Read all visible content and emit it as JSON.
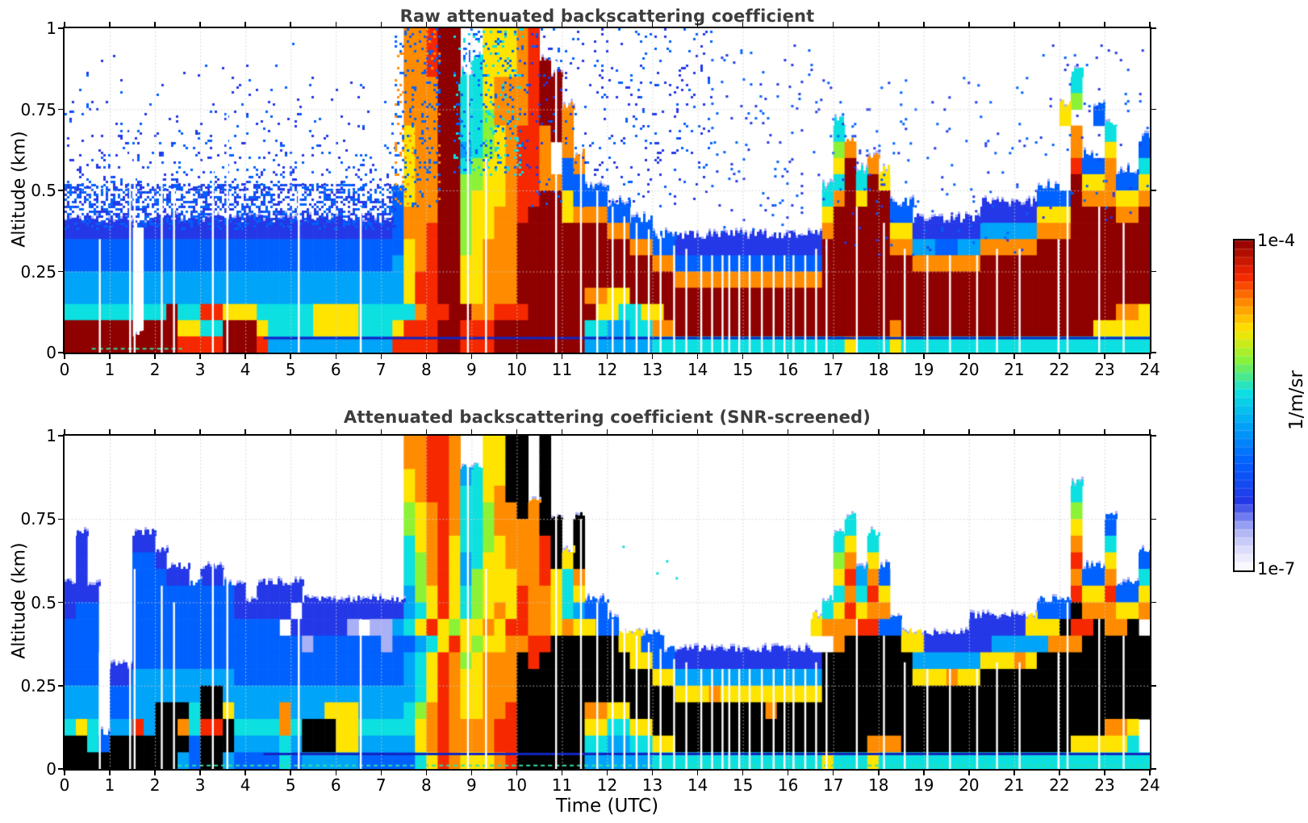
{
  "figure": {
    "background": "#ffffff",
    "title_color": "#3d3d3d",
    "titles": {
      "top": "Raw attenuated backscattering coefficient",
      "bottom": "Attenuated backscattering coefficient (SNR-screened)"
    },
    "xlabel": "Time (UTC)",
    "ylabel": "Altitude (km)",
    "x_ticks": [
      "0",
      "1",
      "2",
      "3",
      "4",
      "5",
      "6",
      "7",
      "8",
      "9",
      "10",
      "11",
      "12",
      "13",
      "14",
      "15",
      "16",
      "17",
      "18",
      "19",
      "20",
      "21",
      "22",
      "23",
      "24"
    ],
    "y_ticks": [
      [
        "1",
        1
      ],
      [
        "0.75",
        0.75
      ],
      [
        "0.5",
        0.5
      ],
      [
        "0.25",
        0.25
      ],
      [
        "0",
        0
      ]
    ],
    "grid_color": "rgba(205,205,205,0.95)",
    "colorbar": {
      "max_label": "1e-4",
      "min_label": "1e-7",
      "units": "1/m/sr",
      "segments": 40,
      "stops": [
        [
          0,
          "#ffffff"
        ],
        [
          0.055,
          "#e2e2fb"
        ],
        [
          0.125,
          "#aab0f5"
        ],
        [
          0.21,
          "#2438e8"
        ],
        [
          0.33,
          "#0061ff"
        ],
        [
          0.44,
          "#00a4f8"
        ],
        [
          0.54,
          "#0ce0e0"
        ],
        [
          0.64,
          "#8cf236"
        ],
        [
          0.73,
          "#ffe400"
        ],
        [
          0.81,
          "#ff8c00"
        ],
        [
          0.89,
          "#f52800"
        ],
        [
          1,
          "#8f0000"
        ]
      ]
    },
    "palette": {
      "1": "#e2e2fb",
      "2": "#aab0f5",
      "3": "#2438e8",
      "4": "#0061ff",
      "5": "#00a4f8",
      "6": "#0ce0e0",
      "7": "#8cf236",
      "8": "#ffe400",
      "9": "#ff8c00",
      "A": "#f52800",
      "B": "#8f0000",
      "K": "#000000"
    }
  },
  "chart_data": [
    {
      "type": "heatmap",
      "title": "Raw attenuated backscattering coefficient",
      "xlabel": "Time (UTC)",
      "x_range_hours_utc": [
        0,
        24
      ],
      "ylabel": "Altitude (km)",
      "y_range_km": [
        0,
        1
      ],
      "value_units": "1/m/sr",
      "value_scale": "log color scale from 1e-7 (white/pale) to 1e-4 (dark red), jet-like colormap",
      "level_log10_values": {
        "1": -6.8,
        "2": -6.55,
        "3": -6.3,
        "4": -6.0,
        "5": -5.7,
        "6": -5.4,
        "7": -5.1,
        "8": -4.8,
        "9": -4.5,
        "A": -4.2,
        "B": -4.0,
        "K": -4.0
      },
      "grid_note": "20 rows top-to-bottom = 1.0 to 0.0 km (0.05 km/row); 96 cols = 0 to 24 h UTC (0.25 h/col); '.' = below range / no echo (white)",
      "grid": [
        "..............................99ABB..8889A......................................................",
        "..............................99ABB..8889A......................................................",
        "..............................99ABB.68889AB.....................................................",
        "..............................999BB668999ABB.............................................6......",
        "..............................999BB668999ABB.............................................7......",
        "..............................999BB667999ABB9...........................................8..4...",
        "..............................899BB66789AA9B9.......................6....................9..6...",
        "..............................899BB56789AA9.9.......................79...................9..8..4",
        "..............................899BB67889AA9.49......................8B.9.................A449..6",
        "..............................899BB77889AA9944......................6B6B8................B889448",
        ".............................4899BB78889AABB8444...................69B8BB.............444B999889",
        ".............................4999BB78899ABBB899944.................8BBBBB44......33333888BBBB99B",
        "333333.3333333333333333333333499ABB78899BBBBBBBB9944...............9BBBBB8833333355555999BBBBBBB",
        "444444.4444444444444444444444489ABB78999BBBBBBBBBB99443333333333333BBBBBB9955445599999BBBBBBBBBB",
        "444444.4444444444444444444444589ABB88999BBBBBBBBBBBB994444444444444BBBBBBBB999999BBBBBBBBBBBBBBB",
        "555555.555555555555555555555558AABB88999BBBBBBBBBBBBBB9999999999999BBBBBBBBBBBBBBBBBBBBBBBBBBBBB",
        "555555.555555555555555555555558AABB88999BBBBBB9988BBBBBBBBBBBBBBBBBBBBBBBBBBBBBBBBBBBBBBBBBBBBBB",
        "666666.66B66AA888666668888666669AABB99AAABBBBBB886688BBBBBBBBBBBBBBBBBBBBBBBBBBBBBBBBBBBBBBBB998",
        "BBBBBB.BBB8866BBB8666688886668AAABBAAABBBBBBBB66556699BBBBBBBBBBBBBBBBBBB9BBBBBBBBBBBBBBBBB888886",
        "BBBBBBBBBBAAAABBBA55555555555AAAABBAAABBBBBBBB5555556666666666666666686668666666666666666666666666"
      ],
      "noise_speckle_regions": [
        {
          "t": [
            0,
            7.3
          ],
          "alt": [
            0.5,
            1.0
          ],
          "density": 0.13,
          "levels": [
            "3",
            "4"
          ],
          "fade": true
        },
        {
          "t": [
            0,
            7.3
          ],
          "alt": [
            0.38,
            0.52
          ],
          "density": 0.45,
          "levels": [
            "3",
            "4"
          ],
          "fade": false
        },
        {
          "t": [
            7.3,
            8.3
          ],
          "alt": [
            0.45,
            1.0
          ],
          "density": 0.22,
          "levels": [
            "4",
            "9"
          ],
          "fade": false
        },
        {
          "t": [
            8.6,
            10.1
          ],
          "alt": [
            0.55,
            1.0
          ],
          "density": 0.15,
          "levels": [
            "4",
            "6"
          ],
          "fade": false
        },
        {
          "t": [
            10.1,
            14.3
          ],
          "alt": [
            0.45,
            1.0
          ],
          "density": 0.05,
          "levels": [
            "3",
            "4"
          ],
          "fade": false
        },
        {
          "t": [
            14.3,
            16.6
          ],
          "alt": [
            0.35,
            0.95
          ],
          "density": 0.03,
          "levels": [
            "3",
            "4"
          ],
          "fade": false
        },
        {
          "t": [
            16.6,
            21.3
          ],
          "alt": [
            0.3,
            0.85
          ],
          "density": 0.02,
          "levels": [
            "3",
            "4"
          ],
          "fade": false
        },
        {
          "t": [
            21.3,
            24
          ],
          "alt": [
            0.4,
            0.95
          ],
          "density": 0.015,
          "levels": [
            "3",
            "4"
          ],
          "fade": false
        }
      ],
      "missing_data_columns": [
        [
          0.78,
          0.35
        ],
        [
          1.45,
          0.78
        ],
        [
          1.55,
          0.6
        ],
        [
          2.15,
          0.55
        ],
        [
          2.42,
          0.5
        ],
        [
          3.28,
          0.62
        ],
        [
          3.6,
          0.75
        ],
        [
          5.18,
          0.5
        ],
        [
          6.55,
          0.45
        ],
        [
          8.92,
          0.95
        ],
        [
          9.32,
          0.6
        ],
        [
          10.87,
          0.9
        ],
        [
          11.42,
          0.75
        ],
        [
          11.78,
          0.5
        ],
        [
          12.12,
          0.45
        ],
        [
          12.38,
          0.42
        ],
        [
          12.65,
          0.4
        ],
        [
          12.92,
          0.38
        ],
        [
          13.18,
          0.36
        ],
        [
          13.48,
          0.33
        ],
        [
          13.75,
          0.32
        ],
        [
          14.08,
          0.3
        ],
        [
          14.32,
          0.3
        ],
        [
          14.55,
          0.3
        ],
        [
          14.7,
          0.3
        ],
        [
          14.92,
          0.3
        ],
        [
          15.15,
          0.3
        ],
        [
          15.42,
          0.3
        ],
        [
          15.68,
          0.3
        ],
        [
          15.92,
          0.3
        ],
        [
          16.12,
          0.3
        ],
        [
          16.38,
          0.3
        ],
        [
          16.62,
          0.32
        ],
        [
          16.85,
          0.35
        ],
        [
          17.52,
          0.45
        ],
        [
          18.12,
          0.4
        ],
        [
          18.58,
          0.32
        ],
        [
          19.08,
          0.3
        ],
        [
          19.58,
          0.3
        ],
        [
          20.18,
          0.3
        ],
        [
          20.62,
          0.32
        ],
        [
          21.12,
          0.32
        ],
        [
          21.98,
          0.35
        ],
        [
          22.18,
          0.5
        ],
        [
          22.88,
          0.45
        ],
        [
          23.42,
          0.4
        ]
      ],
      "line_features": [
        {
          "t": [
            4.4,
            24
          ],
          "alt": 0.045,
          "color": "#1325c0",
          "width": 3
        },
        {
          "t": [
            0.6,
            2.6
          ],
          "alt": 0.012,
          "color": "#30e0a0",
          "width": 2,
          "dash": [
            5,
            4
          ]
        }
      ]
    },
    {
      "type": "heatmap",
      "title": "Attenuated backscattering coefficient (SNR-screened)",
      "xlabel": "Time (UTC)",
      "x_range_hours_utc": [
        0,
        24
      ],
      "ylabel": "Altitude (km)",
      "y_range_km": [
        0,
        1
      ],
      "value_units": "1/m/sr",
      "value_scale": "log color scale from 1e-7 (white/pale) to 1e-4 (dark red); strongest echoes rendered black; low-SNR speckle removed",
      "level_log10_values": {
        "1": -6.8,
        "2": -6.55,
        "3": -6.3,
        "4": -6.0,
        "5": -5.7,
        "6": -5.4,
        "7": -5.1,
        "8": -4.8,
        "9": -4.5,
        "A": -4.2,
        "B": -4.0,
        "K": -4.0
      },
      "grid_note": "20 rows top-to-bottom = 1.0 to 0.0 km (0.05 km/row); 96 cols = 0 to 24 h UTC (0.25 h/col); '.' = screened out (white); 'K' = saturated (black)",
      "grid": [
        "..............................99AA9..88KK.K.....................................................",
        "..............................99AA9..88KK.K.....................................................",
        "..............................89AA95688KK.K.....................................................",
        "..............................89AA96689KK.K..............................................6......",
        "..............................789A966799K9K..............................................7......",
        "..............................789A96679999KK.K.......................6...................8..4...",
        ".3....33......................689A86678999AK.K......................68.6.................9..6...",
        ".3....443.....................679A85688999AK8K......................79.8.................A..8..4",
        ".3....44433.33................679A85788899A869......................8A594................9449..6",
        "333...4444444443.3333.........578A867888A99868......................696A8................A88A448",
        "344...44444444433333.333333333568A867898A9986544...................68A899.............444K999889",
        "444...4444444444444.333332.22568A878898AA99898844.................8999AA44......33333888KAAK99K",
        "444...44444444444444424444442445 68A878899AAKKKKKK8844...............9KKKKK8833333355555999KKKKKKK",
        "444...444444444444444444444444568A978999KAKKKKKKKK88443333333333333KKKKKKKK55555588898KKKKKKKKKK",
        "444.33555555555444444444444444568A988999KKKKKKKKKKKK885555555555555KKKKKKKK888988KKKKKKKKKKKKKKK",
        "555.44555555KK5555555555555555568A988999KKKKKKKKKKKKKK8889888888888KKKKKKKKKKKKKKKKKKKKKKKKKKKKK",
        "555.4455KKK6KK8555595558885555679A98899AKKKKKK9988KKKKKKKKKKKK9KKKKKKKKKKKKKKKKKKKKKKKKKKKKKKKKK",
        "686.55A5KK96AAK66669 6KKK886666689A9999AAKKKKKK886688KKKKKKKKKKKKKKKKKKKKKKKKKKKKKKKKKKKKKKKK998",
        "KK64KKKKKKK4KKK555565KKK885555589A9999AAKKKKKK66556688KKKKKKKKKKKKKKKKK999KKKKKKKKKKKKKKK888886",
        "KKKKKKKKKK54KK54444645555544444 68A98889AKKKKKK55555566666666666666686668666666666666666666666666"
      ],
      "noise_speckle_regions": [
        {
          "t": [
            11.8,
            13.6
          ],
          "alt": [
            0.55,
            0.75
          ],
          "density": 0.006,
          "levels": [
            "6"
          ],
          "fade": false
        }
      ],
      "missing_data_columns": [
        [
          0.78,
          0.35
        ],
        [
          1.45,
          0.78
        ],
        [
          1.55,
          0.6
        ],
        [
          2.15,
          0.55
        ],
        [
          2.42,
          0.5
        ],
        [
          3.28,
          0.62
        ],
        [
          3.6,
          0.75
        ],
        [
          5.18,
          0.5
        ],
        [
          6.55,
          0.45
        ],
        [
          8.92,
          0.95
        ],
        [
          9.32,
          0.6
        ],
        [
          10.87,
          0.9
        ],
        [
          11.42,
          0.75
        ],
        [
          11.78,
          0.5
        ],
        [
          12.12,
          0.45
        ],
        [
          12.38,
          0.42
        ],
        [
          12.65,
          0.4
        ],
        [
          12.92,
          0.38
        ],
        [
          13.18,
          0.36
        ],
        [
          13.48,
          0.33
        ],
        [
          13.75,
          0.32
        ],
        [
          14.08,
          0.3
        ],
        [
          14.32,
          0.3
        ],
        [
          14.55,
          0.3
        ],
        [
          14.7,
          0.3
        ],
        [
          14.92,
          0.3
        ],
        [
          15.15,
          0.3
        ],
        [
          15.42,
          0.3
        ],
        [
          15.68,
          0.3
        ],
        [
          15.92,
          0.3
        ],
        [
          16.12,
          0.3
        ],
        [
          16.38,
          0.3
        ],
        [
          16.62,
          0.32
        ],
        [
          16.85,
          0.35
        ],
        [
          17.52,
          0.45
        ],
        [
          18.12,
          0.4
        ],
        [
          18.58,
          0.32
        ],
        [
          19.08,
          0.3
        ],
        [
          19.58,
          0.3
        ],
        [
          20.18,
          0.3
        ],
        [
          20.62,
          0.32
        ],
        [
          21.12,
          0.32
        ],
        [
          21.98,
          0.35
        ],
        [
          22.18,
          0.5
        ],
        [
          22.88,
          0.45
        ],
        [
          23.42,
          0.4
        ]
      ],
      "line_features": [
        {
          "t": [
            4.4,
            24
          ],
          "alt": 0.045,
          "color": "#1325c0",
          "width": 3
        },
        {
          "t": [
            2.5,
            24
          ],
          "alt": 0.01,
          "color": "#30e0a0",
          "width": 2,
          "dash": [
            5,
            4
          ]
        }
      ]
    }
  ]
}
